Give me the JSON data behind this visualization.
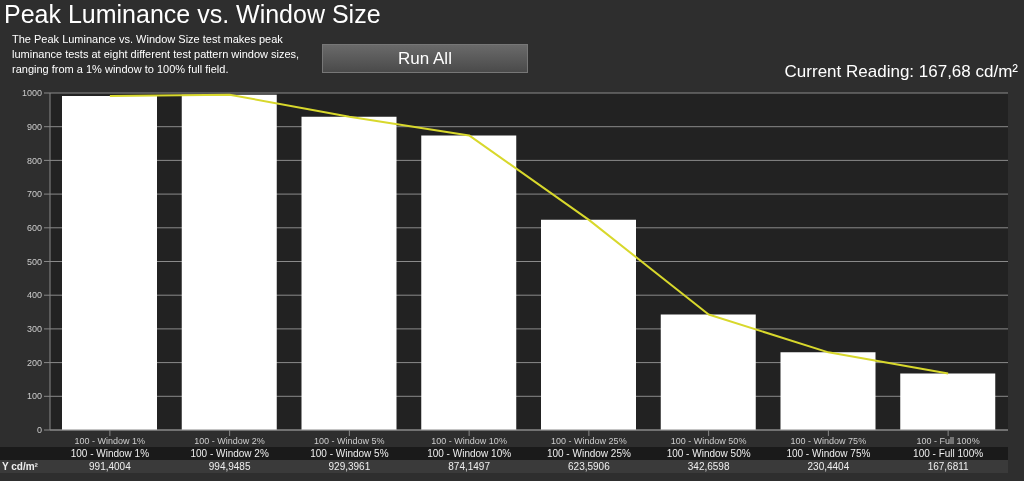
{
  "chart_data": {
    "type": "bar",
    "title": "Peak Luminance vs. Window Size",
    "subtitle": "The Peak Luminance vs. Window Size test makes peak luminance tests at eight different test pattern window sizes, ranging from a 1% window to 100% full field.",
    "annotations": [
      "Run All",
      "Current Reading: 167,68 cd/m²"
    ],
    "categories": [
      "100 - Window 1%",
      "100 - Window 2%",
      "100 - Window 5%",
      "100 - Window 10%",
      "100 - Window 25%",
      "100 - Window 50%",
      "100 - Window 75%",
      "100 - Full 100%"
    ],
    "series": [
      {
        "name": "Y cd/m²",
        "color": "#ffffff",
        "values": [
          991.4004,
          994.9485,
          929.3961,
          874.1497,
          623.5906,
          342.6598,
          230.4404,
          167.6811
        ],
        "value_labels": [
          "991,4004",
          "994,9485",
          "929,3961",
          "874,1497",
          "623,5906",
          "342,6598",
          "230,4404",
          "167,6811"
        ]
      },
      {
        "type": "line",
        "color": "#d8d82c",
        "values": [
          991.4004,
          994.9485,
          929.3961,
          874.1497,
          623.5906,
          342.6598,
          230.4404,
          167.6811
        ]
      }
    ],
    "ylim": [
      0,
      1000
    ],
    "yticks": [
      0,
      100,
      200,
      300,
      400,
      500,
      600,
      700,
      800,
      900,
      1000
    ],
    "grid": "y",
    "legend": false,
    "marker": "none",
    "line_style": "solid"
  }
}
